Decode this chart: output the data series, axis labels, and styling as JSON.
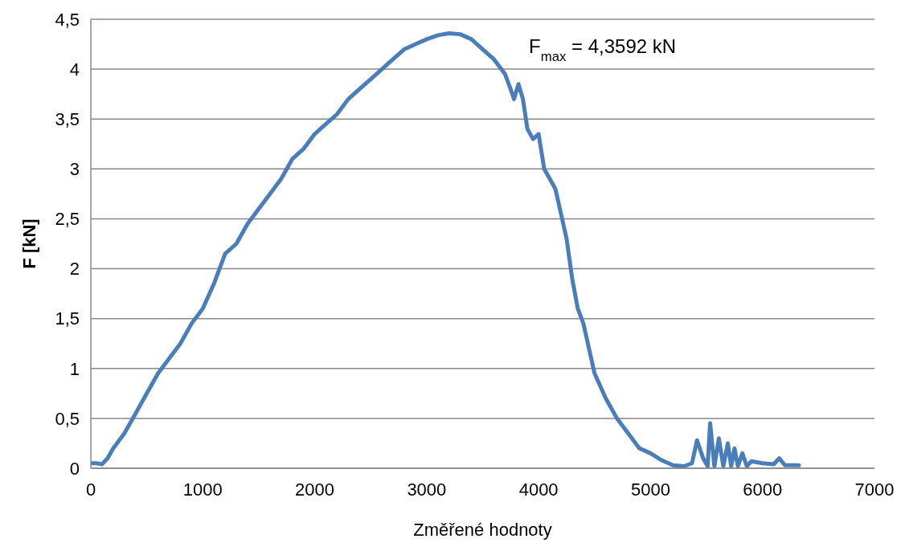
{
  "chart_data": {
    "type": "line",
    "xlabel": "Změřené hodnoty",
    "ylabel": "F [kN]",
    "annotations": [
      "F$_{max}$ = 4,3592 kN"
    ],
    "x": [
      0,
      50,
      100,
      150,
      200,
      300,
      400,
      500,
      600,
      700,
      800,
      900,
      1000,
      1100,
      1200,
      1300,
      1400,
      1500,
      1600,
      1700,
      1800,
      1900,
      2000,
      2100,
      2200,
      2300,
      2400,
      2500,
      2600,
      2700,
      2800,
      2900,
      3000,
      3100,
      3200,
      3300,
      3400,
      3500,
      3600,
      3700,
      3750,
      3780,
      3820,
      3860,
      3900,
      3950,
      4000,
      4050,
      4100,
      4150,
      4200,
      4250,
      4300,
      4350,
      4400,
      4450,
      4500,
      4600,
      4700,
      4800,
      4900,
      5000,
      5100,
      5200,
      5300,
      5370,
      5415,
      5470,
      5510,
      5532,
      5570,
      5610,
      5650,
      5690,
      5720,
      5750,
      5780,
      5820,
      5860,
      5900,
      6000,
      6100,
      6150,
      6200,
      6325
    ],
    "series": [
      {
        "color": "#4a7ebb",
        "values": [
          0.05,
          0.05,
          0.04,
          0.1,
          0.2,
          0.35,
          0.55,
          0.75,
          0.95,
          1.1,
          1.25,
          1.45,
          1.6,
          1.85,
          2.15,
          2.25,
          2.45,
          2.6,
          2.75,
          2.9,
          3.1,
          3.2,
          3.35,
          3.45,
          3.55,
          3.7,
          3.8,
          3.9,
          4.0,
          4.1,
          4.2,
          4.25,
          4.3,
          4.34,
          4.3592,
          4.35,
          4.3,
          4.2,
          4.1,
          3.95,
          3.8,
          3.7,
          3.85,
          3.7,
          3.4,
          3.3,
          3.35,
          3.0,
          2.9,
          2.8,
          2.55,
          2.3,
          1.9,
          1.6,
          1.45,
          1.2,
          0.95,
          0.7,
          0.5,
          0.35,
          0.2,
          0.15,
          0.08,
          0.03,
          0.02,
          0.05,
          0.28,
          0.1,
          0.02,
          0.45,
          0.02,
          0.3,
          0.02,
          0.25,
          0.02,
          0.2,
          0.02,
          0.15,
          0.02,
          0.07,
          0.05,
          0.04,
          0.1,
          0.03,
          0.03
        ]
      }
    ],
    "xlim": [
      0,
      7000
    ],
    "xticks": [
      0,
      1000,
      2000,
      3000,
      4000,
      5000,
      6000,
      7000
    ],
    "ylim": [
      0,
      4.5
    ],
    "yticks": [
      0,
      {
        "value": 0.5,
        "label": "0,5"
      },
      1,
      {
        "value": 1.5,
        "label": "1,5"
      },
      2,
      {
        "value": 2.5,
        "label": "2,5"
      },
      3,
      {
        "value": 3.5,
        "label": "3,5"
      },
      4,
      {
        "value": 4.5,
        "label": "4,5"
      }
    ],
    "grid": "y",
    "legend": false,
    "marker": "none",
    "line_style": "solid"
  }
}
